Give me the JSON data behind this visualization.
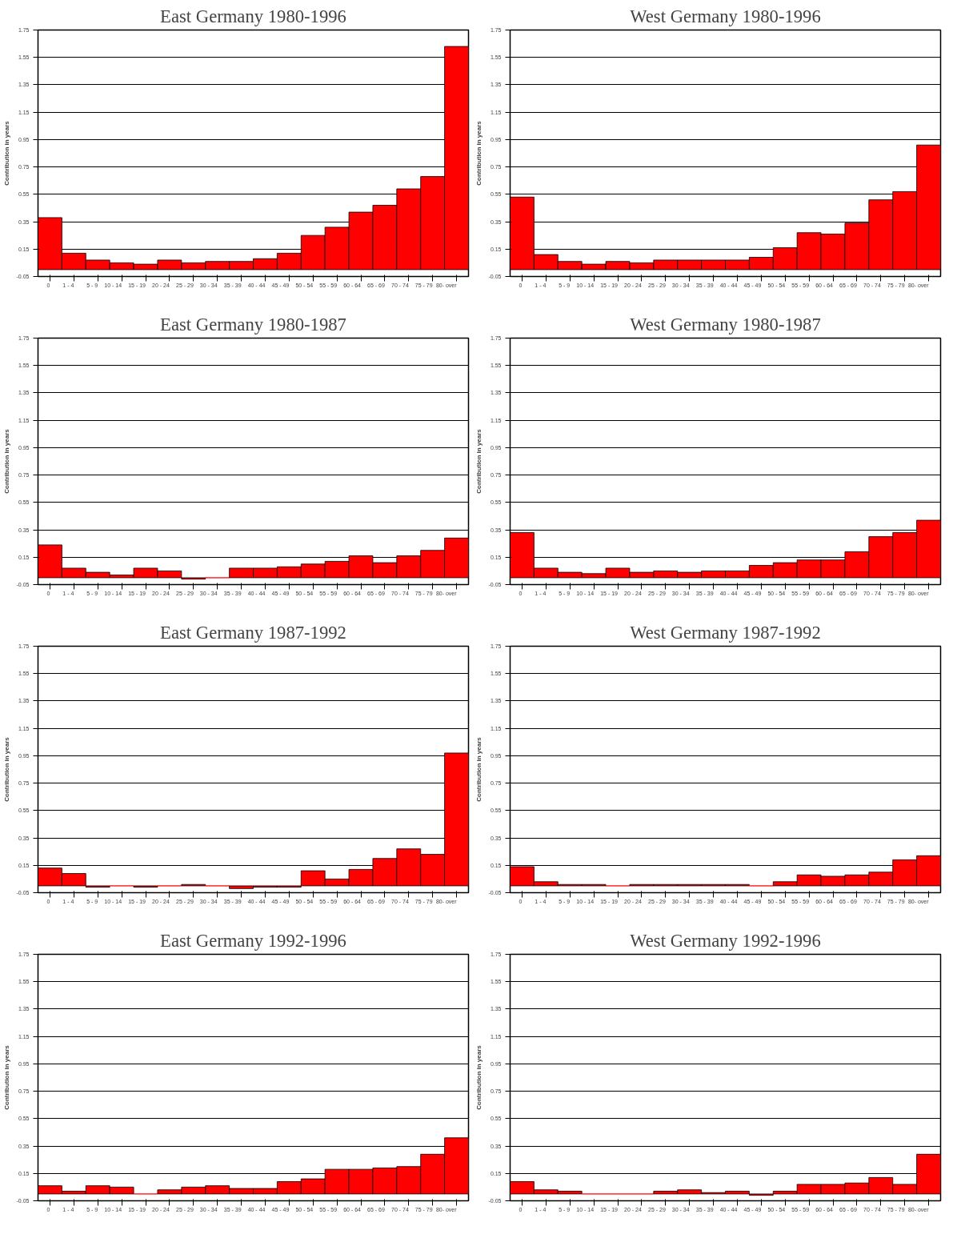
{
  "chart_data": [
    {
      "type": "bar",
      "title": "East Germany 1980-1996",
      "ylabel": "Contribution in years",
      "categories": [
        "0",
        "1 - 4",
        "5 - 9",
        "10 - 14",
        "15 - 19",
        "20 - 24",
        "25 - 29",
        "30 - 34",
        "35 - 39",
        "40 - 44",
        "45 - 49",
        "50 - 54",
        "55 - 59",
        "60 - 64",
        "65 - 69",
        "70 - 74",
        "75 - 79",
        "80- over"
      ],
      "values": [
        0.38,
        0.12,
        0.07,
        0.05,
        0.04,
        0.07,
        0.05,
        0.06,
        0.06,
        0.08,
        0.12,
        0.25,
        0.31,
        0.42,
        0.47,
        0.59,
        0.68,
        1.63
      ],
      "color": "#ff0000",
      "ylim": [
        -0.05,
        1.75
      ],
      "yticks": [
        -0.05,
        0.15,
        0.35,
        0.55,
        0.75,
        0.95,
        1.15,
        1.35,
        1.55,
        1.75
      ],
      "grid": "y"
    },
    {
      "type": "bar",
      "title": "West Germany 1980-1996",
      "ylabel": "Contribution in years",
      "categories": [
        "0",
        "1 - 4",
        "5 - 9",
        "10 - 14",
        "15 - 19",
        "20 - 24",
        "25 - 29",
        "30 - 34",
        "35 - 39",
        "40 - 44",
        "45 - 49",
        "50 - 54",
        "55 - 59",
        "60 - 64",
        "65 - 69",
        "70 - 74",
        "75 - 79",
        "80- over"
      ],
      "values": [
        0.53,
        0.11,
        0.06,
        0.04,
        0.06,
        0.05,
        0.07,
        0.07,
        0.07,
        0.07,
        0.09,
        0.16,
        0.27,
        0.26,
        0.34,
        0.51,
        0.57,
        0.91
      ],
      "color": "#ff0000",
      "ylim": [
        -0.05,
        1.75
      ],
      "yticks": [
        -0.05,
        0.15,
        0.35,
        0.55,
        0.75,
        0.95,
        1.15,
        1.35,
        1.55,
        1.75
      ],
      "grid": "y"
    },
    {
      "type": "bar",
      "title": "East Germany 1980-1987",
      "ylabel": "Contribution in years",
      "categories": [
        "0",
        "1 - 4",
        "5 - 9",
        "10 - 14",
        "15 - 19",
        "20 - 24",
        "25 - 29",
        "30 - 34",
        "35 - 39",
        "40 - 44",
        "45 - 49",
        "50 - 54",
        "55 - 59",
        "60 - 64",
        "65 - 69",
        "70 - 74",
        "75 - 79",
        "80- over"
      ],
      "values": [
        0.24,
        0.07,
        0.04,
        0.02,
        0.07,
        0.05,
        -0.01,
        0.0,
        0.07,
        0.07,
        0.08,
        0.1,
        0.12,
        0.16,
        0.11,
        0.16,
        0.2,
        0.29
      ],
      "color": "#ff0000",
      "ylim": [
        -0.05,
        1.75
      ],
      "yticks": [
        -0.05,
        0.15,
        0.35,
        0.55,
        0.75,
        0.95,
        1.15,
        1.35,
        1.55,
        1.75
      ],
      "grid": "y"
    },
    {
      "type": "bar",
      "title": "West Germany 1980-1987",
      "ylabel": "Contribution in years",
      "categories": [
        "0",
        "1 - 4",
        "5 - 9",
        "10 - 14",
        "15 - 19",
        "20 - 24",
        "25 - 29",
        "30 - 34",
        "35 - 39",
        "40 - 44",
        "45 - 49",
        "50 - 54",
        "55 - 59",
        "60 - 64",
        "65 - 69",
        "70 - 74",
        "75 - 79",
        "80- over"
      ],
      "values": [
        0.33,
        0.07,
        0.04,
        0.03,
        0.07,
        0.04,
        0.05,
        0.04,
        0.05,
        0.05,
        0.09,
        0.11,
        0.13,
        0.13,
        0.19,
        0.3,
        0.33,
        0.42
      ],
      "color": "#ff0000",
      "ylim": [
        -0.05,
        1.75
      ],
      "yticks": [
        -0.05,
        0.15,
        0.35,
        0.55,
        0.75,
        0.95,
        1.15,
        1.35,
        1.55,
        1.75
      ],
      "grid": "y"
    },
    {
      "type": "bar",
      "title": "East Germany 1987-1992",
      "ylabel": "Contribution in years",
      "categories": [
        "0",
        "1 - 4",
        "5 - 9",
        "10 - 14",
        "15 - 19",
        "20 - 24",
        "25 - 29",
        "30 - 34",
        "35 - 39",
        "40 - 44",
        "45 - 49",
        "50 - 54",
        "55 - 59",
        "60 - 64",
        "65 - 69",
        "70 - 74",
        "75 - 79",
        "80- over"
      ],
      "values": [
        0.13,
        0.09,
        -0.01,
        0.0,
        -0.01,
        0.0,
        0.01,
        0.0,
        -0.02,
        -0.01,
        -0.01,
        0.11,
        0.05,
        0.12,
        0.2,
        0.27,
        0.23,
        0.97
      ],
      "color": "#ff0000",
      "ylim": [
        -0.05,
        1.75
      ],
      "yticks": [
        -0.05,
        0.15,
        0.35,
        0.55,
        0.75,
        0.95,
        1.15,
        1.35,
        1.55,
        1.75
      ],
      "grid": "y"
    },
    {
      "type": "bar",
      "title": "West Germany 1987-1992",
      "ylabel": "Contribution in years",
      "categories": [
        "0",
        "1 - 4",
        "5 - 9",
        "10 - 14",
        "15 - 19",
        "20 - 24",
        "25 - 29",
        "30 - 34",
        "35 - 39",
        "40 - 44",
        "45 - 49",
        "50 - 54",
        "55 - 59",
        "60 - 64",
        "65 - 69",
        "70 - 74",
        "75 - 79",
        "80- over"
      ],
      "values": [
        0.14,
        0.03,
        0.01,
        0.01,
        0.0,
        0.01,
        0.01,
        0.01,
        0.01,
        0.01,
        0.0,
        0.03,
        0.08,
        0.07,
        0.08,
        0.1,
        0.19,
        0.22
      ],
      "color": "#ff0000",
      "ylim": [
        -0.05,
        1.75
      ],
      "yticks": [
        -0.05,
        0.15,
        0.35,
        0.55,
        0.75,
        0.95,
        1.15,
        1.35,
        1.55,
        1.75
      ],
      "grid": "y"
    },
    {
      "type": "bar",
      "title": "East Germany 1992-1996",
      "ylabel": "Contribution in years",
      "categories": [
        "0",
        "1 - 4",
        "5 - 9",
        "10 - 14",
        "15 - 19",
        "20 - 24",
        "25 - 29",
        "30 - 34",
        "35 - 39",
        "40 - 44",
        "45 - 49",
        "50 - 54",
        "55 - 59",
        "60 - 64",
        "65 - 69",
        "70 - 74",
        "75 - 79",
        "80- over"
      ],
      "values": [
        0.06,
        0.02,
        0.06,
        0.05,
        0.0,
        0.03,
        0.05,
        0.06,
        0.04,
        0.04,
        0.09,
        0.11,
        0.18,
        0.18,
        0.19,
        0.2,
        0.29,
        0.41
      ],
      "color": "#ff0000",
      "ylim": [
        -0.05,
        1.75
      ],
      "yticks": [
        -0.05,
        0.15,
        0.35,
        0.55,
        0.75,
        0.95,
        1.15,
        1.35,
        1.55,
        1.75
      ],
      "grid": "y"
    },
    {
      "type": "bar",
      "title": "West Germany 1992-1996",
      "ylabel": "Contribution in years",
      "categories": [
        "0",
        "1 - 4",
        "5 - 9",
        "10 - 14",
        "15 - 19",
        "20 - 24",
        "25 - 29",
        "30 - 34",
        "35 - 39",
        "40 - 44",
        "45 - 49",
        "50 - 54",
        "55 - 59",
        "60 - 64",
        "65 - 69",
        "70 - 74",
        "75 - 79",
        "80- over"
      ],
      "values": [
        0.09,
        0.03,
        0.02,
        0.0,
        0.0,
        0.0,
        0.02,
        0.03,
        0.01,
        0.02,
        -0.01,
        0.02,
        0.07,
        0.07,
        0.08,
        0.12,
        0.07,
        0.29
      ],
      "color": "#ff0000",
      "ylim": [
        -0.05,
        1.75
      ],
      "yticks": [
        -0.05,
        0.15,
        0.35,
        0.55,
        0.75,
        0.95,
        1.15,
        1.35,
        1.55,
        1.75
      ],
      "grid": "y"
    }
  ]
}
